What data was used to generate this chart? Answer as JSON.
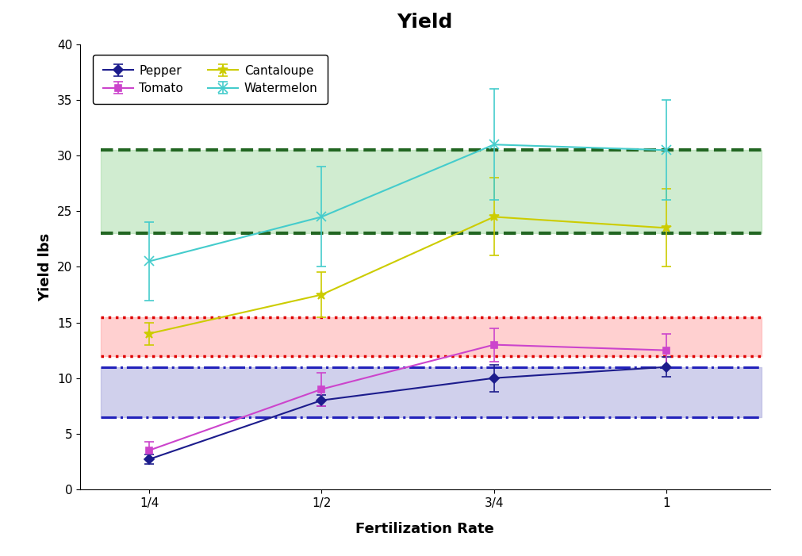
{
  "title": "Yield",
  "xlabel": "Fertilization Rate",
  "ylabel": "Yield lbs",
  "x_ticks": [
    1,
    2,
    3,
    4
  ],
  "x_tick_labels": [
    "1/4",
    "1/2",
    "3/4",
    "1"
  ],
  "ylim": [
    0,
    40
  ],
  "y_ticks": [
    0,
    5,
    10,
    15,
    20,
    25,
    30,
    35,
    40
  ],
  "pepper": {
    "y": [
      2.7,
      8.0,
      10.0,
      11.0
    ],
    "yerr": [
      0.4,
      0.5,
      1.2,
      0.9
    ],
    "color": "#1C1C8C",
    "marker": "D",
    "markersize": 6,
    "label": "Pepper"
  },
  "tomato": {
    "y": [
      3.5,
      9.0,
      13.0,
      12.5
    ],
    "yerr": [
      0.8,
      1.5,
      1.5,
      1.5
    ],
    "color": "#CC44CC",
    "marker": "s",
    "markersize": 6,
    "label": "Tomato"
  },
  "cantaloupe": {
    "y": [
      14.0,
      17.5,
      24.5,
      23.5
    ],
    "yerr": [
      1.0,
      2.0,
      3.5,
      3.5
    ],
    "color": "#CCCC00",
    "marker": "*",
    "markersize": 9,
    "label": "Cantaloupe"
  },
  "watermelon": {
    "y": [
      20.5,
      24.5,
      31.0,
      30.5
    ],
    "yerr": [
      3.5,
      4.5,
      5.0,
      4.5
    ],
    "color": "#44CCCC",
    "marker": "x",
    "markersize": 8,
    "label": "Watermelon"
  },
  "blue_band": {
    "lower": 6.5,
    "upper": 11.0,
    "fill_color": "#AAAADD",
    "fill_alpha": 0.55,
    "line_color": "#2222BB",
    "linestyle": "-.",
    "linewidth": 2.2
  },
  "red_band": {
    "lower": 12.0,
    "upper": 15.5,
    "fill_color": "#FFAAAA",
    "fill_alpha": 0.55,
    "line_color": "#DD0000",
    "linestyle": ":",
    "linewidth": 2.5
  },
  "green_band": {
    "lower": 23.0,
    "upper": 30.5,
    "fill_color": "#AADDAA",
    "fill_alpha": 0.55,
    "line_color": "#226622",
    "linestyle": "--",
    "linewidth": 3.0
  },
  "band_xstart": 0.72,
  "band_xend": 4.55,
  "background_color": "#FFFFFF",
  "title_fontsize": 18,
  "title_fontweight": "bold",
  "label_fontsize": 13,
  "label_fontweight": "bold",
  "tick_fontsize": 11,
  "legend_fontsize": 11,
  "figsize": [
    10.11,
    7.01
  ],
  "dpi": 100
}
